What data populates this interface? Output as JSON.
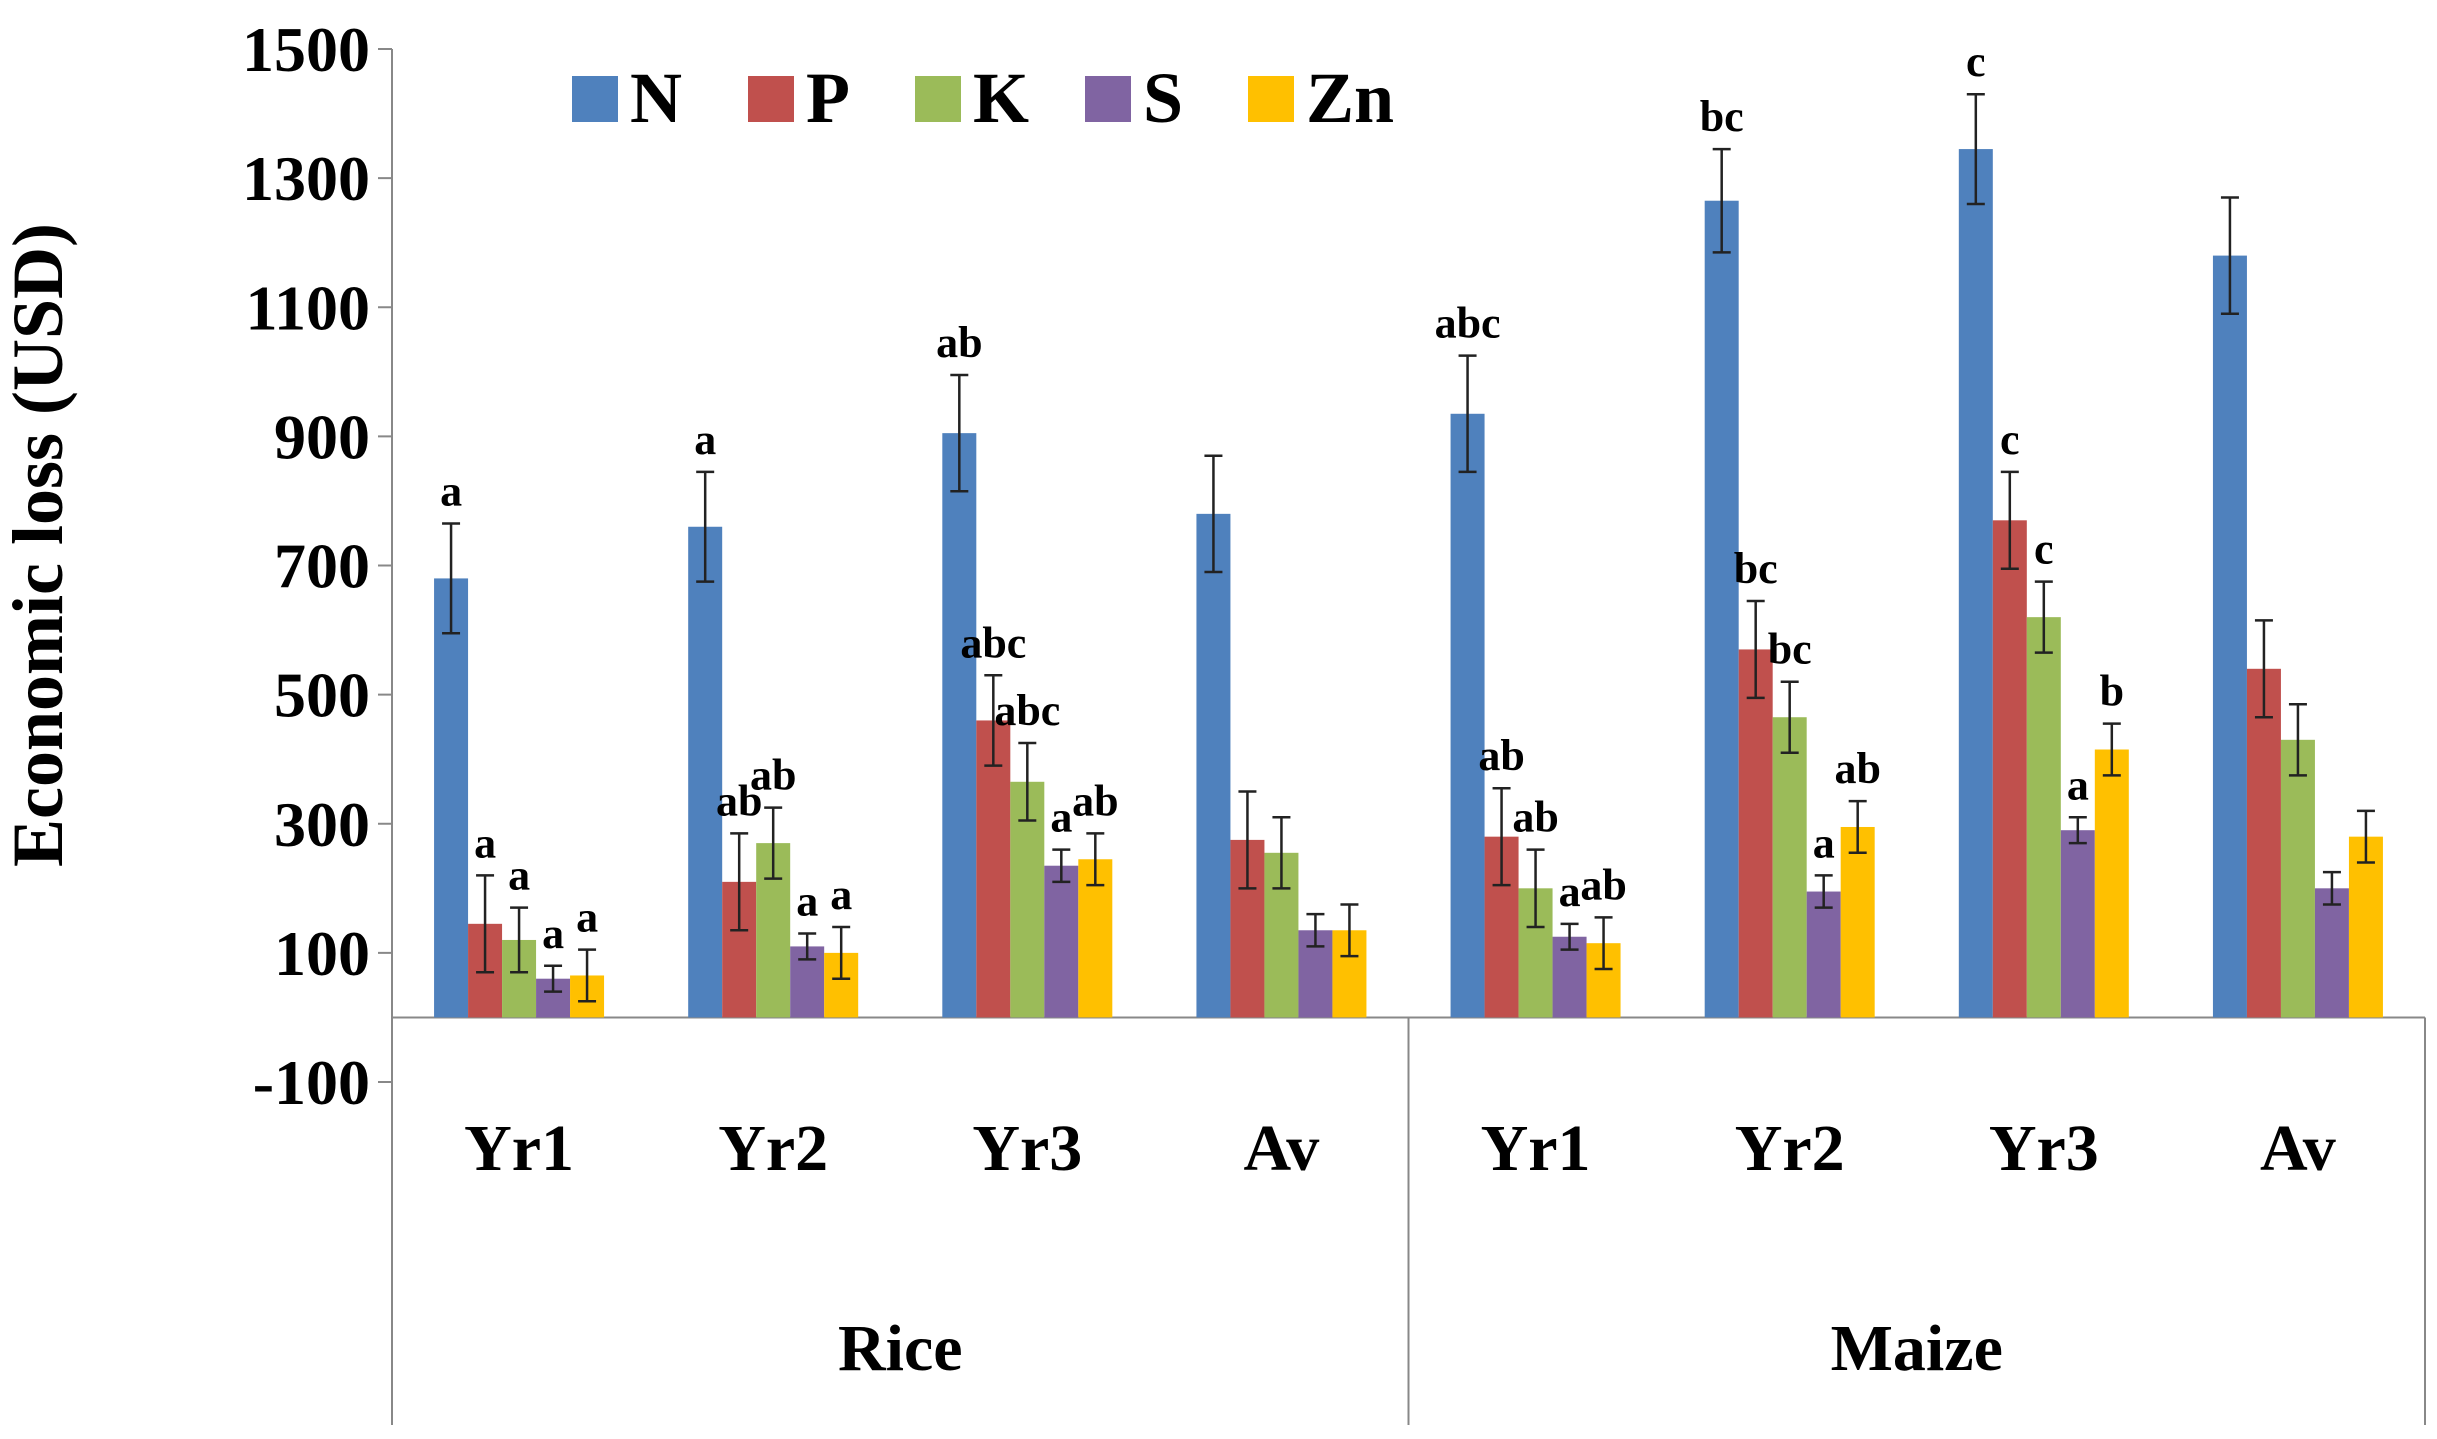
{
  "chart_data": {
    "type": "bar",
    "title": "",
    "ylabel": "Economic loss (USD)",
    "xlabel": "",
    "ylim": [
      -100,
      1500
    ],
    "yticks": [
      -100,
      100,
      300,
      500,
      700,
      900,
      1100,
      1300,
      1500
    ],
    "legend_position": "top-left",
    "groups": [
      {
        "name": "Rice",
        "categories": [
          "Yr1",
          "Yr2",
          "Yr3",
          "Av"
        ]
      },
      {
        "name": "Maize",
        "categories": [
          "Yr1",
          "Yr2",
          "Yr3",
          "Av"
        ]
      }
    ],
    "categories": [
      "Yr1",
      "Yr2",
      "Yr3",
      "Av",
      "Yr1",
      "Yr2",
      "Yr3",
      "Av"
    ],
    "series": [
      {
        "name": "N",
        "color": "#4F81BD",
        "values": [
          680,
          760,
          905,
          780,
          935,
          1265,
          1345,
          1180
        ],
        "errors": [
          85,
          85,
          90,
          90,
          90,
          80,
          85,
          90
        ],
        "labels": [
          "a",
          "a",
          "ab",
          "",
          "abc",
          "bc",
          "c",
          ""
        ]
      },
      {
        "name": "P",
        "color": "#C0504D",
        "values": [
          145,
          210,
          460,
          275,
          280,
          570,
          770,
          540
        ],
        "errors": [
          75,
          75,
          70,
          75,
          75,
          75,
          75,
          75
        ],
        "labels": [
          "a",
          "ab",
          "abc",
          "",
          "ab",
          "bc",
          "c",
          ""
        ]
      },
      {
        "name": "K",
        "color": "#9BBB59",
        "values": [
          120,
          270,
          365,
          255,
          200,
          465,
          620,
          430
        ],
        "errors": [
          50,
          55,
          60,
          55,
          60,
          55,
          55,
          55
        ],
        "labels": [
          "a",
          "ab",
          "abc",
          "",
          "ab",
          "bc",
          "c",
          ""
        ]
      },
      {
        "name": "S",
        "color": "#8064A2",
        "values": [
          60,
          110,
          235,
          135,
          125,
          195,
          290,
          200
        ],
        "errors": [
          20,
          20,
          25,
          25,
          20,
          25,
          20,
          25
        ],
        "labels": [
          "a",
          "a",
          "a",
          "",
          "a",
          "a",
          "a",
          ""
        ]
      },
      {
        "name": "Zn",
        "color": "#FFC000",
        "values": [
          65,
          100,
          245,
          135,
          115,
          295,
          415,
          280
        ],
        "errors": [
          40,
          40,
          40,
          40,
          40,
          40,
          40,
          40
        ],
        "labels": [
          "a",
          "a",
          "ab",
          "",
          "ab",
          "ab",
          "b",
          ""
        ]
      }
    ]
  }
}
